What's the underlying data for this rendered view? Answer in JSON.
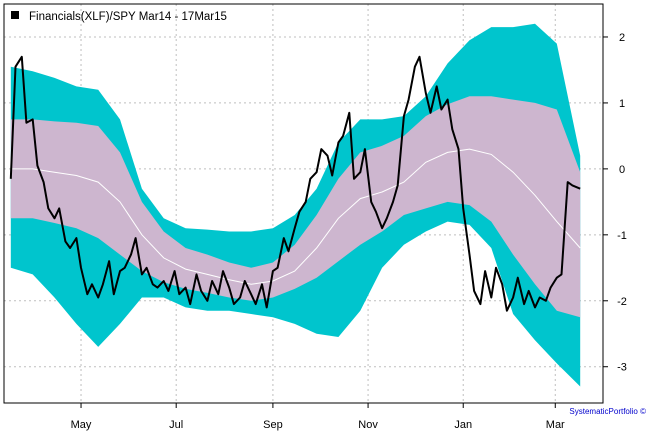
{
  "chart_data": {
    "type": "line",
    "title": "Financials(XLF)/SPY Mar14 - 17Mar15",
    "credit": "SystematicPortfolio ©",
    "legend": {
      "placement": "top-left",
      "entry": "Financials(XLF)/SPY Mar14 - 17Mar15"
    },
    "grid": true,
    "xlim": [
      "2014-03-17",
      "2015-03-17"
    ],
    "ylim": [
      -3.55,
      2.5
    ],
    "x_ticks": [
      {
        "date": "2014-05-01",
        "label": "May"
      },
      {
        "date": "2014-07-01",
        "label": "Jul"
      },
      {
        "date": "2014-09-01",
        "label": "Sep"
      },
      {
        "date": "2014-11-01",
        "label": "Nov"
      },
      {
        "date": "2015-01-01",
        "label": "Jan"
      },
      {
        "date": "2015-03-01",
        "label": "Mar"
      }
    ],
    "y_ticks": [
      2,
      1,
      0,
      -1,
      -2,
      -3
    ],
    "colors": {
      "outer_band": "#00c5cd",
      "inner_band": "#cdb6cf",
      "mean_line": "#ffffff",
      "series": "#000000",
      "grid": "#bfbfbf",
      "credit_text": "#0000cc"
    },
    "bands": {
      "dates": [
        "2014-03-17",
        "2014-03-31",
        "2014-04-14",
        "2014-04-28",
        "2014-05-12",
        "2014-05-26",
        "2014-06-09",
        "2014-06-23",
        "2014-07-07",
        "2014-07-21",
        "2014-08-04",
        "2014-08-18",
        "2014-09-01",
        "2014-09-15",
        "2014-09-29",
        "2014-10-13",
        "2014-10-27",
        "2014-11-10",
        "2014-11-24",
        "2014-12-08",
        "2014-12-22",
        "2015-01-05",
        "2015-01-19",
        "2015-02-02",
        "2015-02-16",
        "2015-03-02",
        "2015-03-17"
      ],
      "outer_upper": [
        1.55,
        1.48,
        1.38,
        1.25,
        1.2,
        0.75,
        -0.3,
        -0.75,
        -0.9,
        -0.92,
        -0.95,
        -0.95,
        -0.9,
        -0.7,
        -0.3,
        0.4,
        0.75,
        0.75,
        0.8,
        1.1,
        1.6,
        1.95,
        2.15,
        2.15,
        2.2,
        1.9,
        0.2
      ],
      "inner_upper": [
        0.75,
        0.75,
        0.72,
        0.7,
        0.65,
        0.25,
        -0.5,
        -0.95,
        -1.2,
        -1.3,
        -1.42,
        -1.5,
        -1.42,
        -1.15,
        -0.7,
        -0.15,
        0.25,
        0.35,
        0.5,
        0.8,
        0.98,
        1.1,
        1.1,
        1.05,
        1.0,
        0.9,
        -0.05
      ],
      "mean": [
        0.0,
        0.0,
        -0.05,
        -0.1,
        -0.2,
        -0.5,
        -1.0,
        -1.35,
        -1.52,
        -1.6,
        -1.68,
        -1.75,
        -1.7,
        -1.55,
        -1.2,
        -0.75,
        -0.45,
        -0.35,
        -0.2,
        0.1,
        0.25,
        0.3,
        0.22,
        -0.05,
        -0.4,
        -0.8,
        -1.2
      ],
      "inner_lower": [
        -0.75,
        -0.75,
        -0.82,
        -0.9,
        -1.05,
        -1.3,
        -1.55,
        -1.72,
        -1.82,
        -1.88,
        -1.95,
        -2.0,
        -1.95,
        -1.82,
        -1.65,
        -1.4,
        -1.15,
        -0.95,
        -0.7,
        -0.6,
        -0.5,
        -0.55,
        -0.8,
        -1.3,
        -1.75,
        -2.15,
        -2.25
      ],
      "outer_lower": [
        -1.5,
        -1.6,
        -1.95,
        -2.35,
        -2.7,
        -2.35,
        -1.95,
        -1.95,
        -2.1,
        -2.15,
        -2.15,
        -2.2,
        -2.25,
        -2.35,
        -2.5,
        -2.55,
        -2.15,
        -1.5,
        -1.15,
        -0.95,
        -0.8,
        -0.85,
        -1.2,
        -2.2,
        -2.6,
        -2.95,
        -3.3
      ]
    },
    "series": [
      {
        "name": "Financials(XLF)/SPY Mar14 - 17Mar15",
        "x": [
          "2014-03-17",
          "2014-03-20",
          "2014-03-24",
          "2014-03-27",
          "2014-03-31",
          "2014-04-03",
          "2014-04-07",
          "2014-04-10",
          "2014-04-14",
          "2014-04-17",
          "2014-04-21",
          "2014-04-24",
          "2014-04-28",
          "2014-05-01",
          "2014-05-05",
          "2014-05-08",
          "2014-05-12",
          "2014-05-15",
          "2014-05-19",
          "2014-05-22",
          "2014-05-26",
          "2014-05-29",
          "2014-06-02",
          "2014-06-05",
          "2014-06-09",
          "2014-06-12",
          "2014-06-16",
          "2014-06-19",
          "2014-06-23",
          "2014-06-26",
          "2014-06-30",
          "2014-07-03",
          "2014-07-07",
          "2014-07-10",
          "2014-07-14",
          "2014-07-17",
          "2014-07-21",
          "2014-07-24",
          "2014-07-28",
          "2014-07-31",
          "2014-08-04",
          "2014-08-07",
          "2014-08-11",
          "2014-08-14",
          "2014-08-18",
          "2014-08-21",
          "2014-08-25",
          "2014-08-28",
          "2014-09-01",
          "2014-09-04",
          "2014-09-08",
          "2014-09-11",
          "2014-09-15",
          "2014-09-18",
          "2014-09-22",
          "2014-09-25",
          "2014-09-29",
          "2014-10-02",
          "2014-10-06",
          "2014-10-09",
          "2014-10-13",
          "2014-10-16",
          "2014-10-20",
          "2014-10-23",
          "2014-10-27",
          "2014-10-30",
          "2014-11-03",
          "2014-11-06",
          "2014-11-10",
          "2014-11-13",
          "2014-11-17",
          "2014-11-20",
          "2014-11-24",
          "2014-11-27",
          "2014-12-01",
          "2014-12-04",
          "2014-12-08",
          "2014-12-11",
          "2014-12-15",
          "2014-12-18",
          "2014-12-22",
          "2014-12-25",
          "2014-12-29",
          "2015-01-01",
          "2015-01-05",
          "2015-01-08",
          "2015-01-12",
          "2015-01-15",
          "2015-01-19",
          "2015-01-22",
          "2015-01-26",
          "2015-01-29",
          "2015-02-02",
          "2015-02-05",
          "2015-02-09",
          "2015-02-12",
          "2015-02-16",
          "2015-02-19",
          "2015-02-23",
          "2015-02-26",
          "2015-03-02",
          "2015-03-05",
          "2015-03-09",
          "2015-03-12",
          "2015-03-17"
        ],
        "values": [
          -0.15,
          1.55,
          1.7,
          0.7,
          0.75,
          0.05,
          -0.2,
          -0.6,
          -0.75,
          -0.6,
          -1.1,
          -1.2,
          -1.05,
          -1.5,
          -1.9,
          -1.75,
          -1.95,
          -1.75,
          -1.4,
          -1.9,
          -1.55,
          -1.5,
          -1.3,
          -1.05,
          -1.6,
          -1.5,
          -1.75,
          -1.8,
          -1.7,
          -1.85,
          -1.55,
          -1.9,
          -1.8,
          -2.05,
          -1.6,
          -1.85,
          -2.0,
          -1.7,
          -1.9,
          -1.55,
          -1.8,
          -2.05,
          -1.95,
          -1.7,
          -1.9,
          -2.05,
          -1.75,
          -2.1,
          -1.55,
          -1.5,
          -1.05,
          -1.25,
          -0.9,
          -0.65,
          -0.5,
          -0.15,
          -0.05,
          0.3,
          0.2,
          -0.1,
          0.4,
          0.5,
          0.85,
          -0.15,
          -0.05,
          0.3,
          -0.5,
          -0.65,
          -0.9,
          -0.75,
          -0.5,
          -0.25,
          0.8,
          1.05,
          1.55,
          1.7,
          1.15,
          0.85,
          1.25,
          0.9,
          1.05,
          0.6,
          0.3,
          -0.6,
          -1.3,
          -1.85,
          -2.05,
          -1.55,
          -1.95,
          -1.5,
          -1.75,
          -2.15,
          -1.95,
          -1.65,
          -2.05,
          -1.85,
          -2.1,
          -1.95,
          -2.0,
          -1.8,
          -1.65,
          -1.6,
          -0.2,
          -0.25,
          -0.3
        ]
      }
    ]
  }
}
